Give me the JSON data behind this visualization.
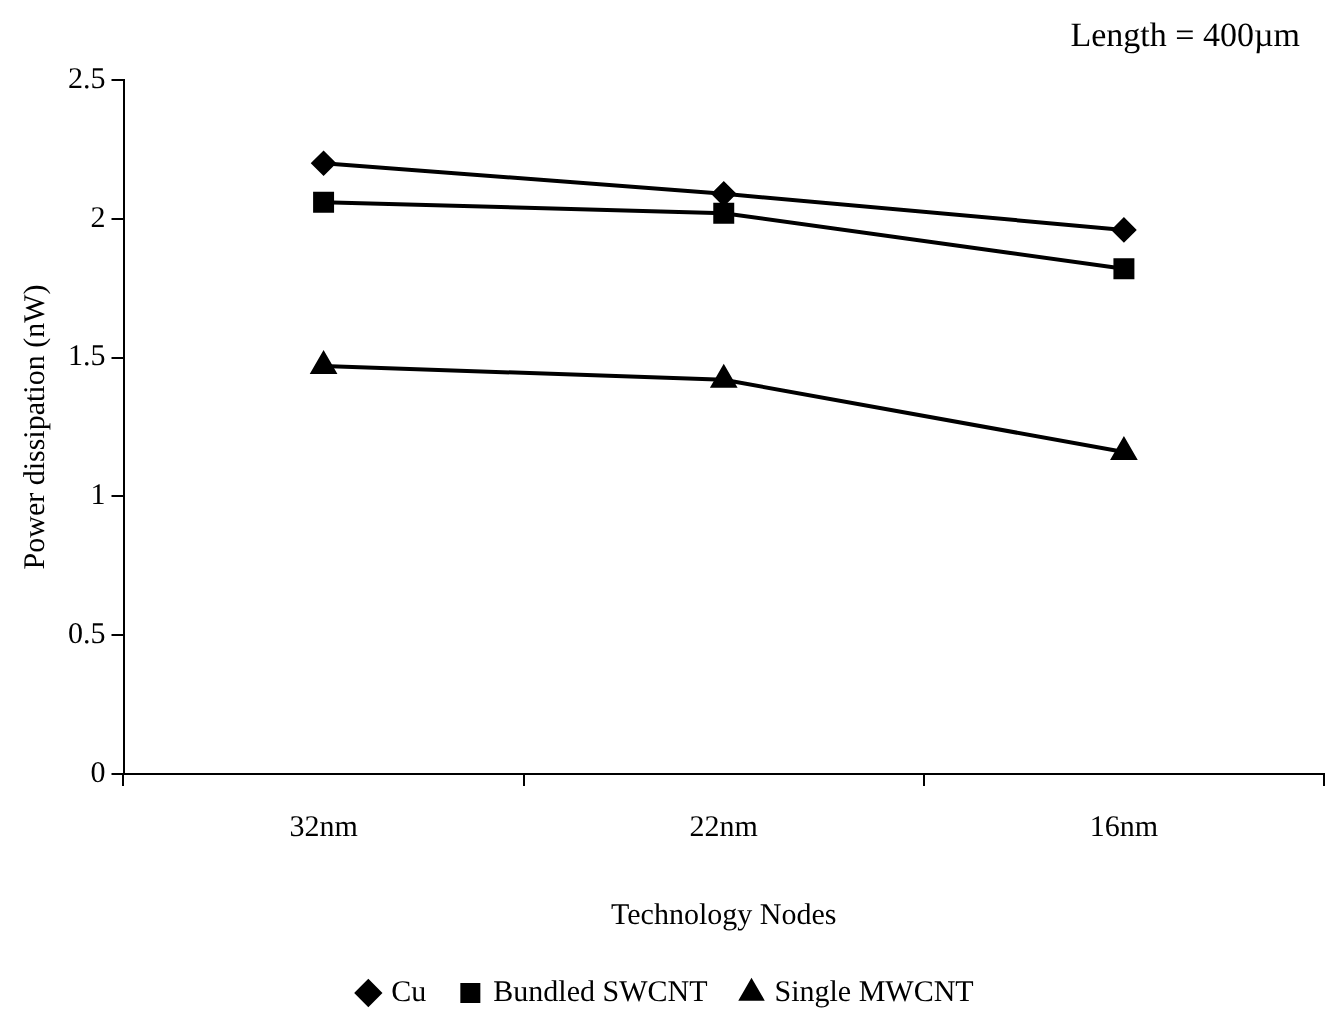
{
  "chart_data": {
    "type": "line",
    "xlabel": "Technology Nodes",
    "ylabel": "Power dissipation (nW)",
    "categories": [
      "32nm",
      "22nm",
      "16nm"
    ],
    "series": [
      {
        "name": "Cu",
        "color": "#000000",
        "marker": "diamond",
        "values": [
          2.2,
          2.09,
          1.96
        ]
      },
      {
        "name": "Bundled SWCNT",
        "color": "#000000",
        "marker": "square",
        "values": [
          2.06,
          2.02,
          1.82
        ]
      },
      {
        "name": "Single MWCNT",
        "color": "#000000",
        "marker": "triangle",
        "values": [
          1.47,
          1.42,
          1.16
        ]
      }
    ],
    "ylim": [
      0,
      2.5
    ],
    "yticks": [
      0,
      0.5,
      1,
      1.5,
      2,
      2.5
    ],
    "grid": false,
    "legend": "bottom",
    "line_style": "solid",
    "annotations": [
      "Length = 400µm"
    ]
  }
}
